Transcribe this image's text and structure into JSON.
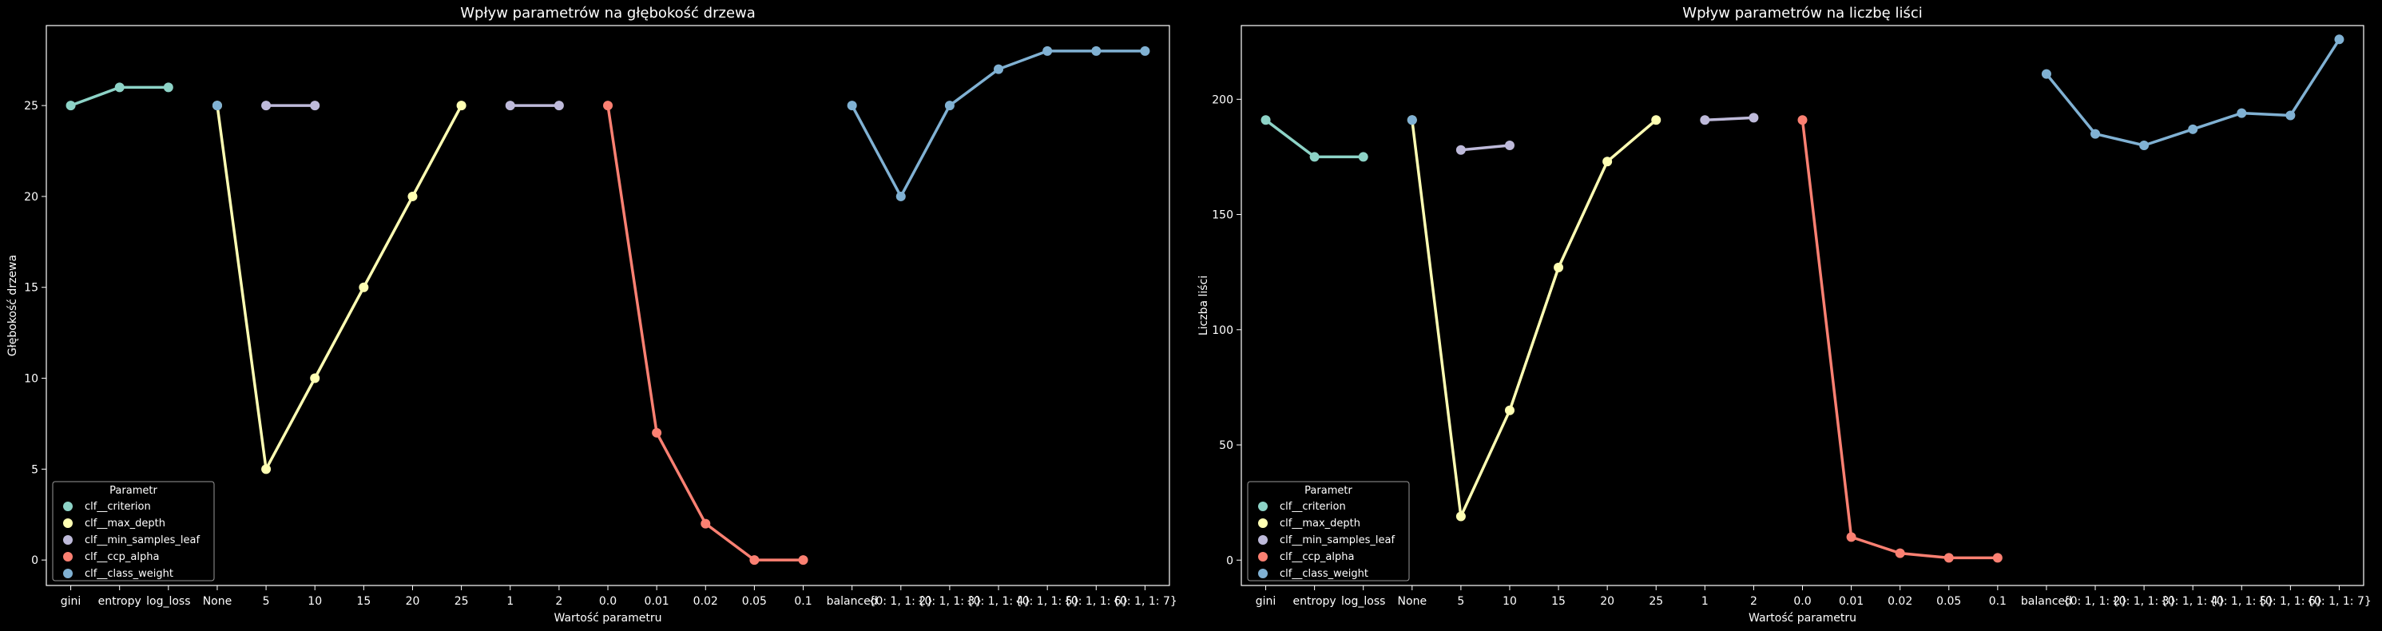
{
  "chart_data": [
    {
      "type": "line",
      "title": "Wpływ parametrów na głębokość drzewa",
      "xlabel": "Wartość parametru",
      "ylabel": "Głębokość drzewa",
      "ylim": [
        -1.4,
        29.4
      ],
      "yticks": [
        0,
        5,
        10,
        15,
        20,
        25
      ],
      "x": [
        "gini",
        "entropy",
        "log_loss",
        "None",
        "5",
        "10",
        "15",
        "20",
        "25",
        "1",
        "2",
        "0.0",
        "0.01",
        "0.02",
        "0.05",
        "0.1",
        "balanced",
        "{0: 1, 1: 2}",
        "{0: 1, 1: 3}",
        "{0: 1, 1: 4}",
        "{0: 1, 1: 5}",
        "{0: 1, 1: 6}",
        "{0: 1, 1: 7}"
      ],
      "series": [
        {
          "name": "clf__criterion",
          "color": "#8dd3c7",
          "x": [
            "gini",
            "entropy",
            "log_loss"
          ],
          "values": [
            25,
            26,
            26
          ]
        },
        {
          "name": "clf__max_depth",
          "color": "#ffffb3",
          "x": [
            "None",
            "5",
            "10",
            "15",
            "20",
            "25"
          ],
          "values": [
            25,
            5,
            10,
            15,
            20,
            25
          ]
        },
        {
          "name": "clf__min_samples_leaf",
          "color": "#bebada",
          "x": [
            "5",
            "10"
          ],
          "values": [
            25,
            25
          ]
        },
        {
          "name": "clf__min_samples_leaf",
          "color": "#bebada",
          "x": [
            "1",
            "2"
          ],
          "values": [
            25,
            25
          ]
        },
        {
          "name": "clf__ccp_alpha",
          "color": "#fb8072",
          "x": [
            "0.0",
            "0.01",
            "0.02",
            "0.05",
            "0.1"
          ],
          "values": [
            25,
            7,
            2,
            0,
            0
          ]
        },
        {
          "name": "clf__class_weight",
          "color": "#80b1d3",
          "x": [
            "None"
          ],
          "values": [
            25
          ]
        },
        {
          "name": "clf__class_weight",
          "color": "#80b1d3",
          "x": [
            "balanced",
            "{0: 1, 1: 2}",
            "{0: 1, 1: 3}",
            "{0: 1, 1: 4}",
            "{0: 1, 1: 5}",
            "{0: 1, 1: 6}",
            "{0: 1, 1: 7}"
          ],
          "values": [
            25,
            20,
            25,
            27,
            28,
            28,
            28
          ]
        }
      ],
      "legend": {
        "title": "Parametr",
        "position": "lower-left",
        "entries": [
          {
            "label": "clf__criterion",
            "color": "#8dd3c7"
          },
          {
            "label": "clf__max_depth",
            "color": "#ffffb3"
          },
          {
            "label": "clf__min_samples_leaf",
            "color": "#bebada"
          },
          {
            "label": "clf__ccp_alpha",
            "color": "#fb8072"
          },
          {
            "label": "clf__class_weight",
            "color": "#80b1d3"
          }
        ]
      },
      "grid": false
    },
    {
      "type": "line",
      "title": "Wpływ parametrów na liczbę liści",
      "xlabel": "Wartość parametru",
      "ylabel": "Liczba liści",
      "ylim": [
        -11,
        232
      ],
      "yticks": [
        0,
        50,
        100,
        150,
        200
      ],
      "x": [
        "gini",
        "entropy",
        "log_loss",
        "None",
        "5",
        "10",
        "15",
        "20",
        "25",
        "1",
        "2",
        "0.0",
        "0.01",
        "0.02",
        "0.05",
        "0.1",
        "balanced",
        "{0: 1, 1: 2}",
        "{0: 1, 1: 3}",
        "{0: 1, 1: 4}",
        "{0: 1, 1: 5}",
        "{0: 1, 1: 6}",
        "{0: 1, 1: 7}"
      ],
      "series": [
        {
          "name": "clf__criterion",
          "color": "#8dd3c7",
          "x": [
            "gini",
            "entropy",
            "log_loss"
          ],
          "values": [
            191,
            175,
            175
          ]
        },
        {
          "name": "clf__max_depth",
          "color": "#ffffb3",
          "x": [
            "None",
            "5",
            "10",
            "15",
            "20",
            "25"
          ],
          "values": [
            191,
            19,
            65,
            127,
            173,
            191
          ]
        },
        {
          "name": "clf__min_samples_leaf",
          "color": "#bebada",
          "x": [
            "5",
            "10"
          ],
          "values": [
            178,
            180
          ]
        },
        {
          "name": "clf__min_samples_leaf",
          "color": "#bebada",
          "x": [
            "1",
            "2"
          ],
          "values": [
            191,
            192
          ]
        },
        {
          "name": "clf__ccp_alpha",
          "color": "#fb8072",
          "x": [
            "0.0",
            "0.01",
            "0.02",
            "0.05",
            "0.1"
          ],
          "values": [
            191,
            10,
            3,
            1,
            1
          ]
        },
        {
          "name": "clf__class_weight",
          "color": "#80b1d3",
          "x": [
            "None"
          ],
          "values": [
            191
          ]
        },
        {
          "name": "clf__class_weight",
          "color": "#80b1d3",
          "x": [
            "balanced",
            "{0: 1, 1: 2}",
            "{0: 1, 1: 3}",
            "{0: 1, 1: 4}",
            "{0: 1, 1: 5}",
            "{0: 1, 1: 6}",
            "{0: 1, 1: 7}"
          ],
          "values": [
            211,
            185,
            180,
            187,
            194,
            193,
            226
          ]
        }
      ],
      "legend": {
        "title": "Parametr",
        "position": "lower-left",
        "entries": [
          {
            "label": "clf__criterion",
            "color": "#8dd3c7"
          },
          {
            "label": "clf__max_depth",
            "color": "#ffffb3"
          },
          {
            "label": "clf__min_samples_leaf",
            "color": "#bebada"
          },
          {
            "label": "clf__ccp_alpha",
            "color": "#fb8072"
          },
          {
            "label": "clf__class_weight",
            "color": "#80b1d3"
          }
        ]
      },
      "grid": false
    }
  ]
}
